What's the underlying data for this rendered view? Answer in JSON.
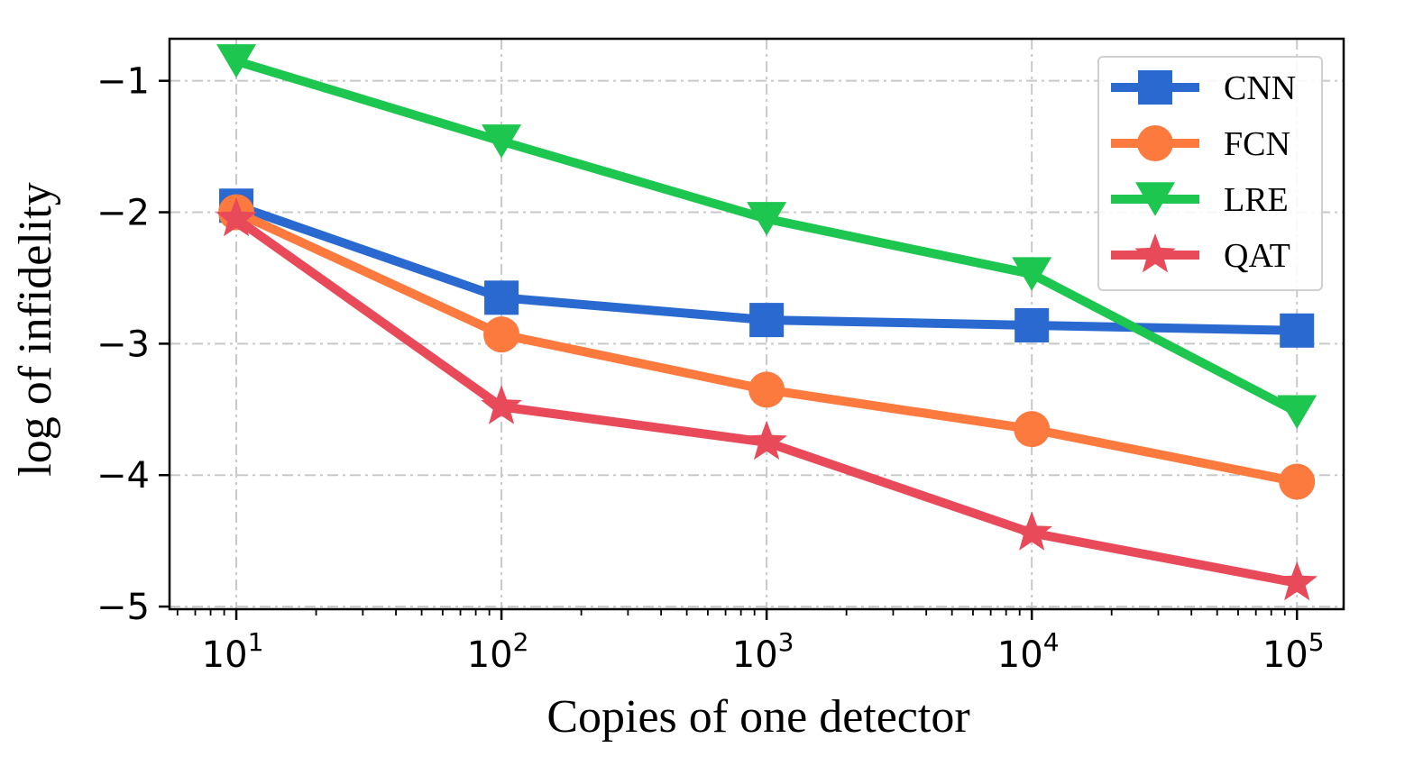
{
  "chart_data": {
    "type": "line",
    "title": "",
    "xlabel": "Copies of one detector",
    "ylabel": "log of infidelity",
    "x_scale": "log",
    "x": [
      10,
      100,
      1000,
      10000,
      100000
    ],
    "xlim": [
      5.6,
      150000
    ],
    "ylim": [
      -5.02,
      -0.68
    ],
    "x_ticks": [
      {
        "base": "10",
        "exp": "1",
        "value": 10
      },
      {
        "base": "10",
        "exp": "2",
        "value": 100
      },
      {
        "base": "10",
        "exp": "3",
        "value": 1000
      },
      {
        "base": "10",
        "exp": "4",
        "value": 10000
      },
      {
        "base": "10",
        "exp": "5",
        "value": 100000
      }
    ],
    "y_ticks": [
      {
        "label": "−1",
        "value": -1
      },
      {
        "label": "−2",
        "value": -2
      },
      {
        "label": "−3",
        "value": -3
      },
      {
        "label": "−4",
        "value": -4
      },
      {
        "label": "−5",
        "value": -5
      }
    ],
    "grid": true,
    "legend_position": "top-right",
    "series": [
      {
        "name": "CNN",
        "color": "#2969D0",
        "marker": "square",
        "values": [
          -1.95,
          -2.65,
          -2.82,
          -2.86,
          -2.9
        ]
      },
      {
        "name": "FCN",
        "color": "#FC7A3E",
        "marker": "circle",
        "values": [
          -2.0,
          -2.93,
          -3.35,
          -3.65,
          -4.05
        ]
      },
      {
        "name": "LRE",
        "color": "#1CC64F",
        "marker": "triangle-down",
        "values": [
          -0.85,
          -1.46,
          -2.05,
          -2.47,
          -3.52
        ]
      },
      {
        "name": "QAT",
        "color": "#E84A5A",
        "marker": "star",
        "values": [
          -2.05,
          -3.48,
          -3.75,
          -4.44,
          -4.82
        ]
      }
    ]
  }
}
